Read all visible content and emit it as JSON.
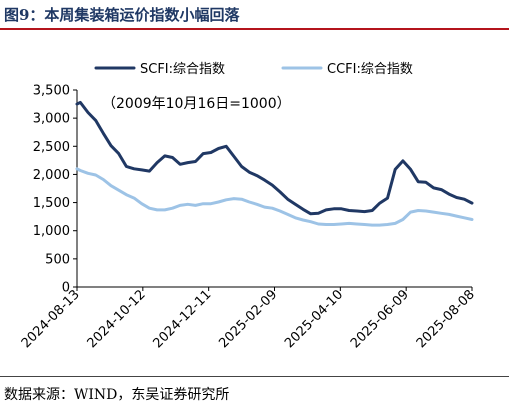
{
  "figure": {
    "title": "图9：本周集装箱运价指数小幅回落",
    "source": "数据来源：WIND，东吴证券研究所"
  },
  "chart_data": {
    "type": "line",
    "annotation": "（2009年10月16日=1000）",
    "x_ticks": [
      "2024-08-13",
      "2024-10-12",
      "2024-12-11",
      "2025-02-09",
      "2025-04-10",
      "2025-06-09",
      "2025-08-08"
    ],
    "x_range": [
      "2024-08-13",
      "2025-08-08"
    ],
    "y_ticks": [
      0,
      500,
      1000,
      1500,
      2000,
      2500,
      3000,
      3500
    ],
    "y_tick_labels": [
      "0",
      "500",
      "1,000",
      "1,500",
      "2,000",
      "2,500",
      "3,000",
      "3,500"
    ],
    "ylim": [
      0,
      3500
    ],
    "grid": false,
    "legend_position": "top",
    "series": [
      {
        "name": "SCFI:综合指数",
        "color": "#203864",
        "width": 3,
        "points": [
          [
            "2024-08-13",
            3250
          ],
          [
            "2024-08-16",
            3280
          ],
          [
            "2024-08-23",
            3100
          ],
          [
            "2024-08-30",
            2960
          ],
          [
            "2024-09-06",
            2730
          ],
          [
            "2024-09-13",
            2510
          ],
          [
            "2024-09-20",
            2370
          ],
          [
            "2024-09-27",
            2140
          ],
          [
            "2024-10-04",
            2100
          ],
          [
            "2024-10-11",
            2080
          ],
          [
            "2024-10-18",
            2060
          ],
          [
            "2024-10-25",
            2210
          ],
          [
            "2024-11-01",
            2330
          ],
          [
            "2024-11-08",
            2300
          ],
          [
            "2024-11-15",
            2180
          ],
          [
            "2024-11-22",
            2210
          ],
          [
            "2024-11-29",
            2230
          ],
          [
            "2024-12-06",
            2370
          ],
          [
            "2024-12-13",
            2390
          ],
          [
            "2024-12-20",
            2460
          ],
          [
            "2024-12-27",
            2500
          ],
          [
            "2025-01-03",
            2320
          ],
          [
            "2025-01-10",
            2140
          ],
          [
            "2025-01-17",
            2040
          ],
          [
            "2025-01-24",
            1980
          ],
          [
            "2025-01-31",
            1900
          ],
          [
            "2025-02-07",
            1810
          ],
          [
            "2025-02-14",
            1690
          ],
          [
            "2025-02-21",
            1560
          ],
          [
            "2025-02-28",
            1470
          ],
          [
            "2025-03-07",
            1380
          ],
          [
            "2025-03-14",
            1300
          ],
          [
            "2025-03-21",
            1310
          ],
          [
            "2025-03-28",
            1370
          ],
          [
            "2025-04-04",
            1390
          ],
          [
            "2025-04-11",
            1390
          ],
          [
            "2025-04-18",
            1360
          ],
          [
            "2025-04-25",
            1350
          ],
          [
            "2025-05-02",
            1340
          ],
          [
            "2025-05-09",
            1360
          ],
          [
            "2025-05-16",
            1490
          ],
          [
            "2025-05-23",
            1580
          ],
          [
            "2025-05-30",
            2090
          ],
          [
            "2025-06-06",
            2240
          ],
          [
            "2025-06-13",
            2090
          ],
          [
            "2025-06-20",
            1870
          ],
          [
            "2025-06-27",
            1860
          ],
          [
            "2025-07-04",
            1760
          ],
          [
            "2025-07-11",
            1730
          ],
          [
            "2025-07-18",
            1650
          ],
          [
            "2025-07-25",
            1590
          ],
          [
            "2025-08-01",
            1560
          ],
          [
            "2025-08-08",
            1490
          ]
        ]
      },
      {
        "name": "CCFI:综合指数",
        "color": "#9dc3e6",
        "width": 3,
        "points": [
          [
            "2024-08-13",
            2100
          ],
          [
            "2024-08-16",
            2070
          ],
          [
            "2024-08-23",
            2020
          ],
          [
            "2024-08-30",
            1990
          ],
          [
            "2024-09-06",
            1910
          ],
          [
            "2024-09-13",
            1800
          ],
          [
            "2024-09-20",
            1720
          ],
          [
            "2024-09-27",
            1640
          ],
          [
            "2024-10-04",
            1580
          ],
          [
            "2024-10-11",
            1480
          ],
          [
            "2024-10-18",
            1400
          ],
          [
            "2024-10-25",
            1370
          ],
          [
            "2024-11-01",
            1370
          ],
          [
            "2024-11-08",
            1400
          ],
          [
            "2024-11-15",
            1450
          ],
          [
            "2024-11-22",
            1470
          ],
          [
            "2024-11-29",
            1450
          ],
          [
            "2024-12-06",
            1480
          ],
          [
            "2024-12-13",
            1480
          ],
          [
            "2024-12-20",
            1510
          ],
          [
            "2024-12-27",
            1550
          ],
          [
            "2025-01-03",
            1570
          ],
          [
            "2025-01-10",
            1560
          ],
          [
            "2025-01-17",
            1510
          ],
          [
            "2025-01-24",
            1470
          ],
          [
            "2025-01-31",
            1420
          ],
          [
            "2025-02-07",
            1400
          ],
          [
            "2025-02-14",
            1350
          ],
          [
            "2025-02-21",
            1290
          ],
          [
            "2025-02-28",
            1230
          ],
          [
            "2025-03-07",
            1190
          ],
          [
            "2025-03-14",
            1160
          ],
          [
            "2025-03-21",
            1120
          ],
          [
            "2025-03-28",
            1110
          ],
          [
            "2025-04-04",
            1110
          ],
          [
            "2025-04-11",
            1120
          ],
          [
            "2025-04-18",
            1130
          ],
          [
            "2025-04-25",
            1120
          ],
          [
            "2025-05-02",
            1110
          ],
          [
            "2025-05-09",
            1100
          ],
          [
            "2025-05-16",
            1100
          ],
          [
            "2025-05-23",
            1110
          ],
          [
            "2025-05-30",
            1130
          ],
          [
            "2025-06-06",
            1200
          ],
          [
            "2025-06-13",
            1330
          ],
          [
            "2025-06-20",
            1360
          ],
          [
            "2025-06-27",
            1350
          ],
          [
            "2025-07-04",
            1330
          ],
          [
            "2025-07-11",
            1310
          ],
          [
            "2025-07-18",
            1290
          ],
          [
            "2025-07-25",
            1260
          ],
          [
            "2025-08-01",
            1230
          ],
          [
            "2025-08-08",
            1200
          ]
        ]
      }
    ]
  }
}
